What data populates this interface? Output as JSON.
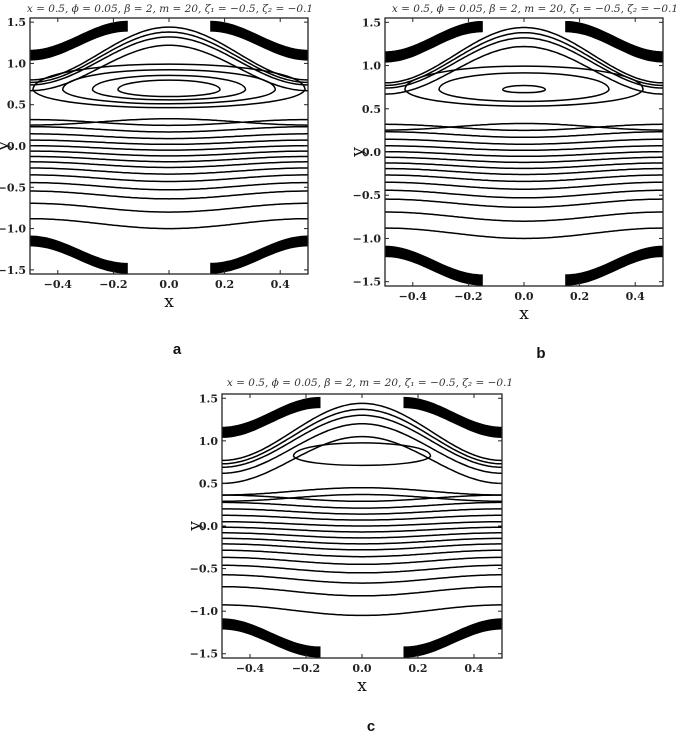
{
  "chart_data": [
    {
      "type": "contour",
      "panel": "a",
      "title": "x = 0.5, ϕ = 0.05, β = 2, m = 20, ζ₁ = −0.5, ζ₂ = −0.1",
      "xlabel": "x",
      "ylabel": "y",
      "xlim": [
        -0.5,
        0.5
      ],
      "ylim": [
        -1.55,
        1.55
      ],
      "xticks": [
        "-0.4",
        "-0.2",
        "0.0",
        "0.2",
        "0.4"
      ],
      "yticks": [
        "-1.5",
        "-1.0",
        "-0.5",
        "0.0",
        "0.5",
        "1.0",
        "1.5"
      ],
      "open_streamlines_y_at_x0": [
        0.33,
        0.25,
        0.17,
        0.09,
        0.02,
        -0.05,
        -0.12,
        -0.19,
        -0.26,
        -0.34,
        -0.43,
        -0.53,
        -0.64,
        -0.8,
        -1.0
      ],
      "trapped_bolus": {
        "center": [
          0.0,
          0.68
        ],
        "closed_contours_half_height": [
          0.32,
          0.25,
          0.18,
          0.12
        ]
      },
      "upper_open_contours_peak_y": [
        1.22,
        1.32,
        1.38,
        1.44
      ],
      "wall_bands": "upper wall band near y = 1.1–1.5, lower wall band near y = -1.1 to -1.5"
    },
    {
      "type": "contour",
      "panel": "b",
      "title": "x = 0.5, ϕ = 0.05, β = 2, m = 20, ζ₁ = −0.5, ζ₂ = −0.1",
      "xlabel": "x",
      "ylabel": "y",
      "xlim": [
        -0.5,
        0.5
      ],
      "ylim": [
        -1.55,
        1.55
      ],
      "xticks": [
        "-0.4",
        "-0.2",
        "0.0",
        "0.2",
        "0.4"
      ],
      "yticks": [
        "-1.5",
        "-1.0",
        "-0.5",
        "0.0",
        "0.5",
        "1.0",
        "1.5"
      ],
      "open_streamlines_y_at_x0": [
        0.33,
        0.25,
        0.17,
        0.09,
        0.02,
        -0.05,
        -0.12,
        -0.19,
        -0.26,
        -0.34,
        -0.43,
        -0.53,
        -0.64,
        -0.8,
        -1.0
      ],
      "trapped_bolus": {
        "center": [
          0.0,
          0.72
        ],
        "closed_contours_half_height": [
          0.28,
          0.2,
          0.05
        ]
      },
      "upper_open_contours_peak_y": [
        1.22,
        1.32,
        1.38,
        1.44
      ],
      "wall_bands": "upper wall band near y = 1.1–1.5, lower wall band near y = -1.1 to -1.5"
    },
    {
      "type": "contour",
      "panel": "c",
      "title": "x = 0.5, ϕ = 0.05, β = 2, m = 20, ζ₁ = −0.5, ζ₂ = −0.1",
      "xlabel": "x",
      "ylabel": "y",
      "xlim": [
        -0.5,
        0.5
      ],
      "ylim": [
        -1.55,
        1.55
      ],
      "xticks": [
        "-0.4",
        "-0.2",
        "0.0",
        "0.2",
        "0.4"
      ],
      "yticks": [
        "-1.5",
        "-1.0",
        "-0.5",
        "0.0",
        "0.5",
        "1.0",
        "1.5"
      ],
      "open_streamlines_y_at_x0": [
        0.45,
        0.37,
        0.29,
        0.21,
        0.14,
        0.07,
        0.0,
        -0.07,
        -0.14,
        -0.21,
        -0.28,
        -0.36,
        -0.45,
        -0.55,
        -0.67,
        -0.82,
        -1.05
      ],
      "trapped_bolus": {
        "center": [
          0.0,
          0.82
        ],
        "closed_contours_half_height": [
          0.16
        ]
      },
      "upper_open_contours_peak_y": [
        1.05,
        1.2,
        1.3,
        1.37,
        1.44
      ],
      "wall_bands": "upper wall band near y = 1.1–1.5, lower wall band near y = -1.1 to -1.5"
    }
  ],
  "colors": {
    "line": "#000000",
    "background": "#ffffff",
    "frame": "#222222"
  }
}
